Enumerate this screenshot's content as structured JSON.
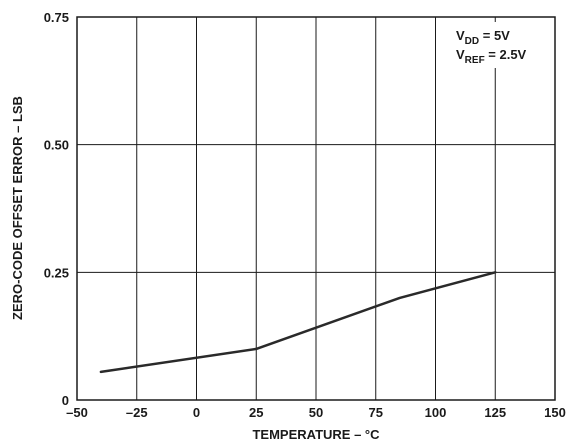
{
  "chart_data": {
    "type": "line",
    "xlabel": "TEMPERATURE – °C",
    "ylabel": "ZERO-CODE OFFSET ERROR – LSB",
    "xlim": [
      -50,
      150
    ],
    "ylim": [
      0,
      0.75
    ],
    "x_ticks": [
      "–50",
      "–25",
      "0",
      "25",
      "50",
      "75",
      "100",
      "125",
      "150"
    ],
    "y_ticks": [
      "0",
      "0.25",
      "0.50",
      "0.75"
    ],
    "grid": true,
    "series": [
      {
        "x": [
          -40,
          25,
          85,
          125
        ],
        "values": [
          0.055,
          0.1,
          0.2,
          0.25
        ],
        "color": "#2a2a2a"
      }
    ],
    "annotations": [
      {
        "main": "V",
        "sub": "DD",
        "rest": " = 5V"
      },
      {
        "main": "V",
        "sub": "REF",
        "rest": " = 2.5V"
      }
    ]
  }
}
